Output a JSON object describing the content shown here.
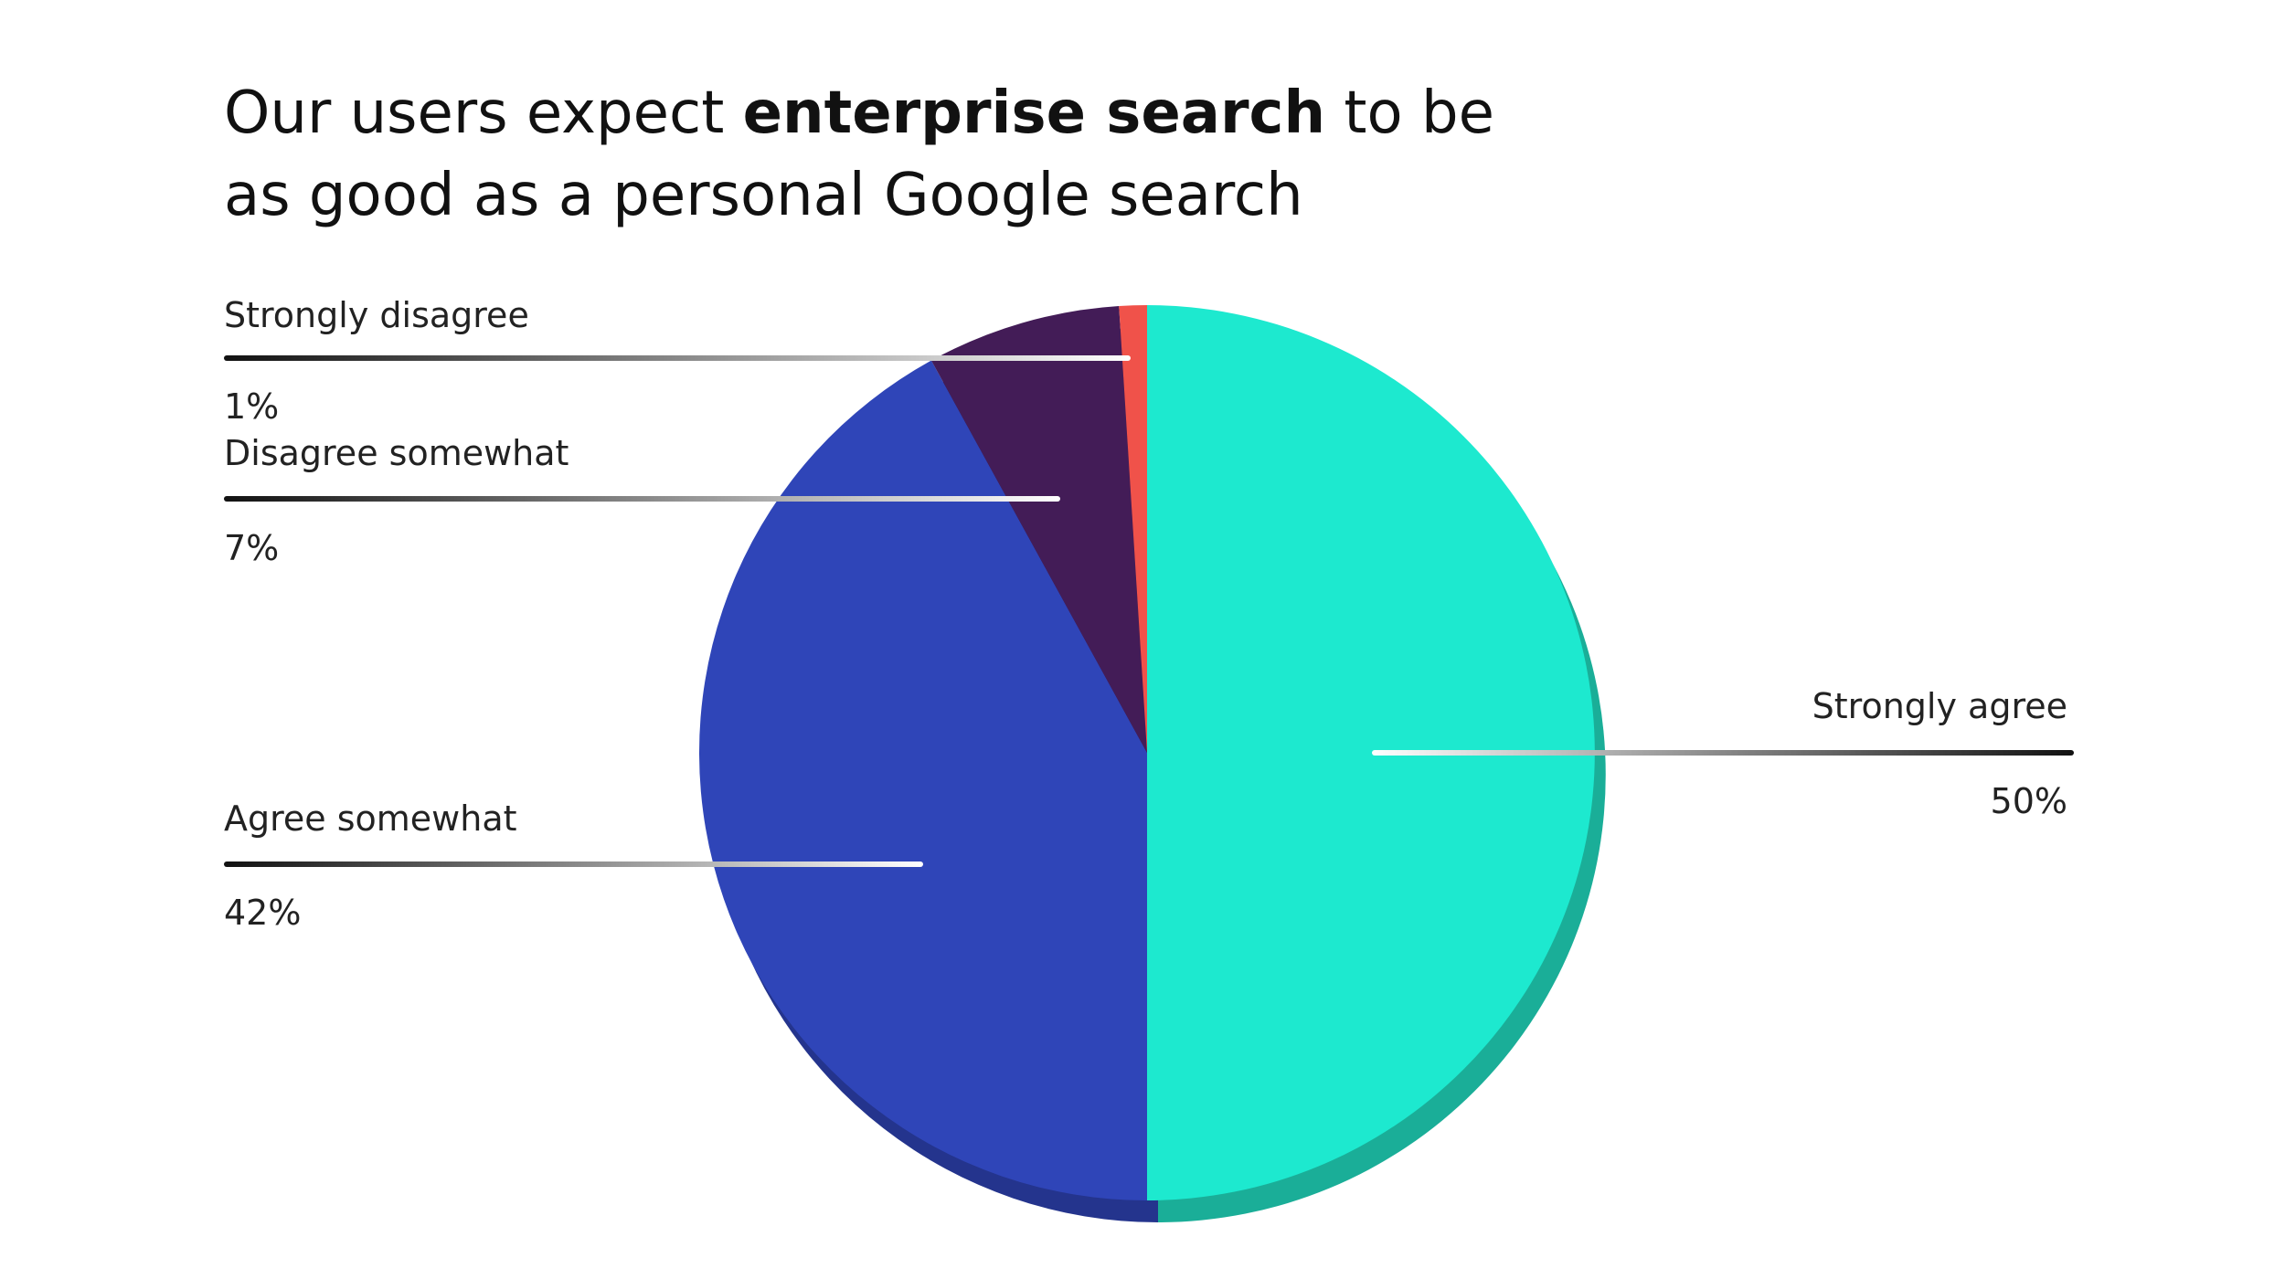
{
  "chart_data": {
    "type": "pie",
    "title": [
      [
        {
          "text": "Our users expect"
        },
        {
          "text": "enterprise search",
          "bold": true
        },
        {
          "text": "to be"
        }
      ],
      [
        {
          "text": "as good as a personal Google search"
        }
      ]
    ],
    "categories": [
      "Strongly agree",
      "Agree somewhat",
      "Disagree somewhat",
      "Strongly disagree"
    ],
    "values": [
      50,
      42,
      7,
      1
    ],
    "value_labels": [
      "50%",
      "42%",
      "7%",
      "1%"
    ],
    "colors": [
      "#1de9cf",
      "#2f45b8",
      "#431c57",
      "#f0524a"
    ],
    "depth_colors": [
      "#1aae98",
      "#24348d",
      "#31143f",
      "#b53c36"
    ],
    "start_angle": 0,
    "direction": "clockwise"
  }
}
